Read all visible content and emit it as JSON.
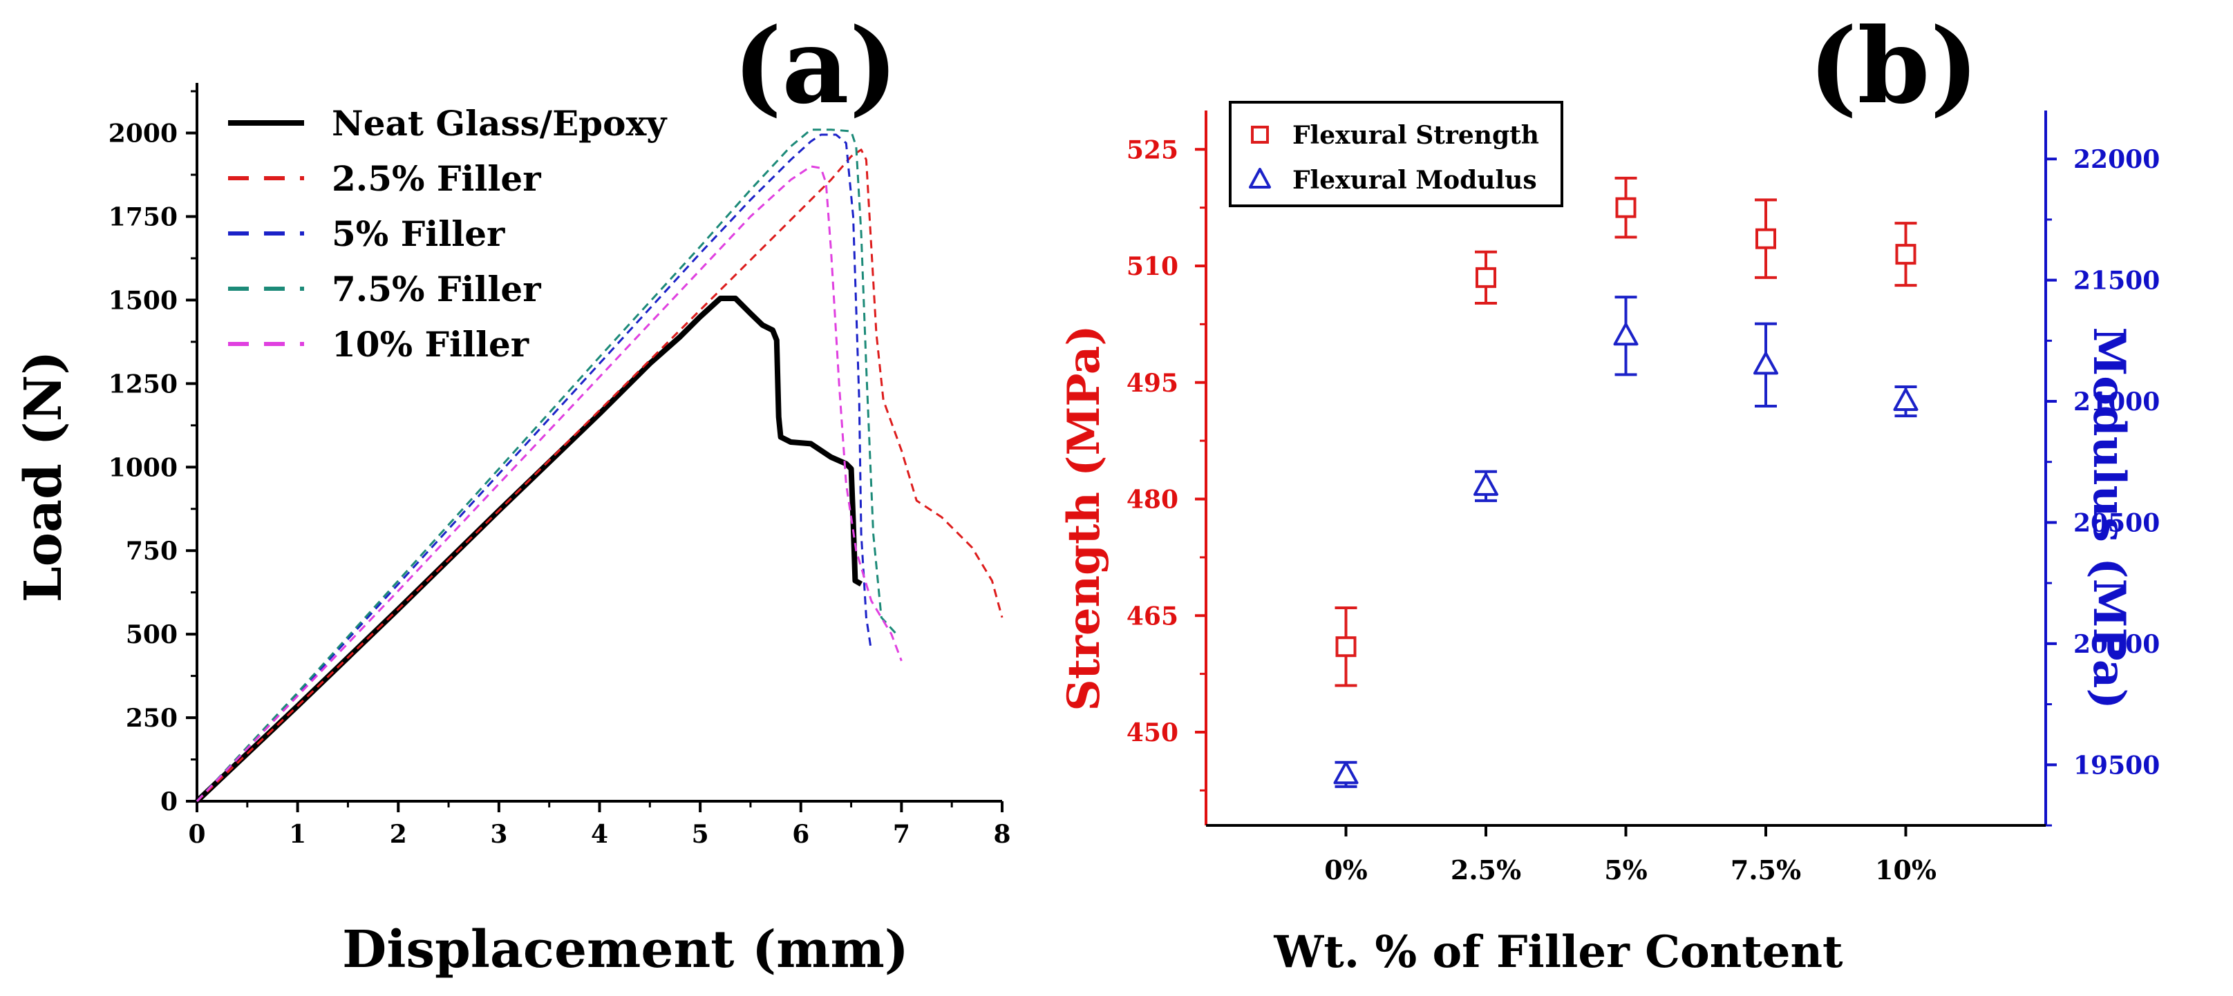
{
  "figure": {
    "panel_a_label": "(a)",
    "panel_b_label": "(b)"
  },
  "colors": {
    "black": "#000000",
    "red": "#dd1c1c",
    "blue": "#1b22c8",
    "teal": "#1c8a78",
    "magenta": "#e040e0",
    "axis_red": "#e01010",
    "axis_blue": "#1010c8"
  },
  "chart_data": [
    {
      "type": "line",
      "panel": "(a)",
      "title": "",
      "xlabel": "Displacement (mm)",
      "ylabel": "Load (N)",
      "xlim": [
        0,
        8
      ],
      "ylim": [
        0,
        2150
      ],
      "xticks": [
        0,
        1,
        2,
        3,
        4,
        5,
        6,
        7,
        8
      ],
      "yticks": [
        0,
        250,
        500,
        750,
        1000,
        1250,
        1500,
        1750,
        2000
      ],
      "grid": false,
      "legend_position": "top-left",
      "series": [
        {
          "name": "Neat Glass/Epoxy",
          "color": "#000000",
          "style": "solid",
          "points": [
            [
              0,
              0
            ],
            [
              1,
              285
            ],
            [
              2,
              575
            ],
            [
              3,
              870
            ],
            [
              4,
              1160
            ],
            [
              4.5,
              1310
            ],
            [
              4.8,
              1390
            ],
            [
              5.0,
              1450
            ],
            [
              5.2,
              1505
            ],
            [
              5.35,
              1505
            ],
            [
              5.5,
              1460
            ],
            [
              5.62,
              1425
            ],
            [
              5.72,
              1410
            ],
            [
              5.76,
              1380
            ],
            [
              5.78,
              1150
            ],
            [
              5.8,
              1090
            ],
            [
              5.9,
              1075
            ],
            [
              6.1,
              1070
            ],
            [
              6.3,
              1030
            ],
            [
              6.45,
              1010
            ],
            [
              6.5,
              995
            ],
            [
              6.52,
              840
            ],
            [
              6.54,
              660
            ],
            [
              6.6,
              650
            ]
          ]
        },
        {
          "name": "2.5% Filler",
          "color": "#dd1c1c",
          "style": "dashed",
          "points": [
            [
              0,
              0
            ],
            [
              1,
              285
            ],
            [
              2,
              575
            ],
            [
              3,
              870
            ],
            [
              4,
              1170
            ],
            [
              5,
              1470
            ],
            [
              5.5,
              1620
            ],
            [
              6,
              1770
            ],
            [
              6.3,
              1860
            ],
            [
              6.5,
              1930
            ],
            [
              6.6,
              1950
            ],
            [
              6.65,
              1920
            ],
            [
              6.75,
              1400
            ],
            [
              6.82,
              1200
            ],
            [
              7.0,
              1050
            ],
            [
              7.15,
              900
            ],
            [
              7.4,
              850
            ],
            [
              7.7,
              760
            ],
            [
              7.9,
              660
            ],
            [
              8.0,
              550
            ]
          ]
        },
        {
          "name": "5% Filler",
          "color": "#1b22c8",
          "style": "dashed",
          "points": [
            [
              0,
              0
            ],
            [
              1,
              320
            ],
            [
              2,
              650
            ],
            [
              3,
              980
            ],
            [
              4,
              1310
            ],
            [
              5,
              1640
            ],
            [
              5.5,
              1800
            ],
            [
              5.9,
              1920
            ],
            [
              6.1,
              1975
            ],
            [
              6.2,
              1995
            ],
            [
              6.35,
              1995
            ],
            [
              6.45,
              1970
            ],
            [
              6.52,
              1750
            ],
            [
              6.58,
              1200
            ],
            [
              6.6,
              800
            ],
            [
              6.65,
              550
            ],
            [
              6.7,
              450
            ]
          ]
        },
        {
          "name": "7.5% Filler",
          "color": "#1c8a78",
          "style": "dashed",
          "points": [
            [
              0,
              0
            ],
            [
              1,
              325
            ],
            [
              2,
              660
            ],
            [
              3,
              995
            ],
            [
              4,
              1330
            ],
            [
              5,
              1660
            ],
            [
              5.5,
              1830
            ],
            [
              5.9,
              1960
            ],
            [
              6.1,
              2010
            ],
            [
              6.3,
              2010
            ],
            [
              6.5,
              2005
            ],
            [
              6.55,
              1960
            ],
            [
              6.6,
              1700
            ],
            [
              6.65,
              1300
            ],
            [
              6.72,
              800
            ],
            [
              6.8,
              550
            ],
            [
              6.95,
              500
            ]
          ]
        },
        {
          "name": "10% Filler",
          "color": "#e040e0",
          "style": "dashed",
          "points": [
            [
              0,
              0
            ],
            [
              1,
              315
            ],
            [
              2,
              630
            ],
            [
              3,
              950
            ],
            [
              4,
              1270
            ],
            [
              5,
              1590
            ],
            [
              5.5,
              1750
            ],
            [
              5.9,
              1860
            ],
            [
              6.1,
              1900
            ],
            [
              6.2,
              1895
            ],
            [
              6.25,
              1850
            ],
            [
              6.3,
              1650
            ],
            [
              6.38,
              1250
            ],
            [
              6.45,
              950
            ],
            [
              6.55,
              750
            ],
            [
              6.7,
              600
            ],
            [
              6.9,
              500
            ],
            [
              7.0,
              420
            ]
          ]
        }
      ]
    },
    {
      "type": "scatter",
      "panel": "(b)",
      "title": "",
      "xlabel": "Wt. % of Filler Content",
      "ylabel": "Strength (MPa)",
      "y2label": "Modulus (MPa)",
      "categories": [
        "0%",
        "2.5%",
        "5%",
        "7.5%",
        "10%"
      ],
      "ylim": [
        438,
        530
      ],
      "yticks": [
        450,
        465,
        480,
        495,
        510,
        525
      ],
      "y2lim": [
        19250,
        22200
      ],
      "y2ticks": [
        19500,
        20000,
        20500,
        21000,
        21500,
        22000
      ],
      "grid": false,
      "legend_position": "top-left",
      "series": [
        {
          "name": "Flexural Strength",
          "axis": "left",
          "marker": "square",
          "color": "#dd1c1c",
          "values": [
            461,
            508.5,
            517.5,
            513.5,
            511.5
          ],
          "errors": [
            5,
            3.3,
            3.8,
            5,
            4
          ]
        },
        {
          "name": "Flexural Modulus",
          "axis": "right",
          "marker": "triangle",
          "color": "#1b22c8",
          "values": [
            19460,
            20650,
            21270,
            21150,
            21000
          ],
          "errors": [
            50,
            60,
            160,
            170,
            60
          ]
        }
      ]
    }
  ]
}
